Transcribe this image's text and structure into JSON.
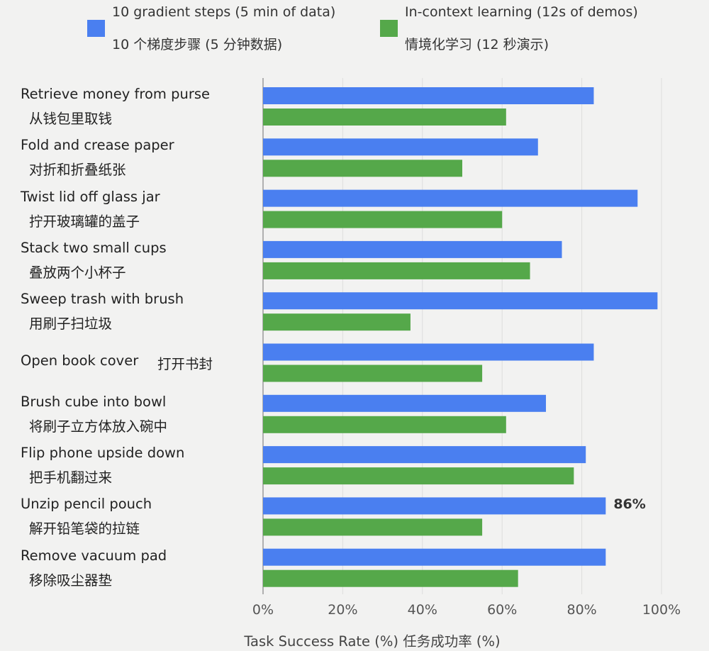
{
  "chart_data": {
    "type": "bar",
    "orientation": "horizontal",
    "categories": [
      {
        "en": "Retrieve money from purse",
        "zh": "从钱包里取钱"
      },
      {
        "en": "Fold and crease paper",
        "zh": "对折和折叠纸张"
      },
      {
        "en": "Twist lid off glass jar",
        "zh": "拧开玻璃罐的盖子"
      },
      {
        "en": "Stack two small cups",
        "zh": "叠放两个小杯子"
      },
      {
        "en": "Sweep trash with brush",
        "zh": "用刷子扫垃圾"
      },
      {
        "en": "Open book cover",
        "zh": "打开书封"
      },
      {
        "en": "Brush cube into bowl",
        "zh": "将刷子立方体放入碗中"
      },
      {
        "en": "Flip phone upside down",
        "zh": "把手机翻过来"
      },
      {
        "en": "Unzip pencil pouch",
        "zh": "解开铅笔袋的拉链"
      },
      {
        "en": "Remove vacuum pad",
        "zh": "移除吸尘器垫"
      }
    ],
    "series": [
      {
        "name_en": "10 gradient steps (5 min of data)",
        "name_zh": "10 个梯度步骤 (5 分钟数据)",
        "color": "#4a7ff0",
        "values": [
          83,
          69,
          94,
          75,
          99,
          83,
          71,
          81,
          86,
          86
        ]
      },
      {
        "name_en": "In-context learning (12s of demos)",
        "name_zh": "情境化学习 (12 秒演示)",
        "color": "#55a84a",
        "values": [
          61,
          50,
          60,
          67,
          37,
          55,
          61,
          78,
          55,
          64
        ]
      }
    ],
    "xlim": [
      0,
      100
    ],
    "ticks": [
      "0%",
      "20%",
      "40%",
      "60%",
      "80%",
      "100%"
    ],
    "xlabel": "Task Success Rate (%)  任务成功率 (%)",
    "annotation": {
      "text": "86%",
      "category_index": 8,
      "series_index": 0
    },
    "grid": true,
    "legend": "top"
  }
}
